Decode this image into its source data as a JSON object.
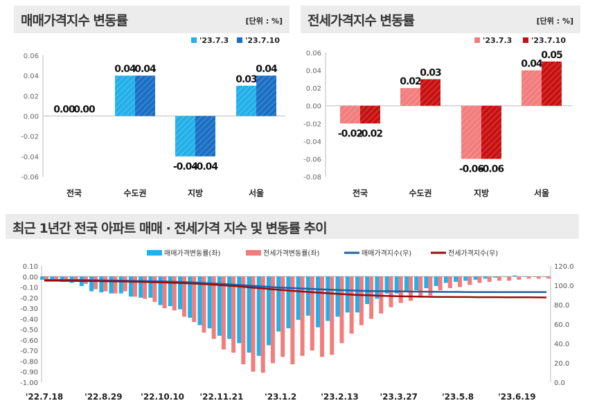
{
  "colors": {
    "sale_light": "#22b0e8",
    "sale_dark": "#1a6fc4",
    "jeonse_light": "#f27d7d",
    "jeonse_dark": "#c81010",
    "sale_line": "#1f5fa8",
    "jeonse_line": "#9b0a0a"
  },
  "chart_data": [
    {
      "type": "bar",
      "title": "매매가격지수 변동률",
      "unit": "[단위 : %]",
      "categories": [
        "전국",
        "수도권",
        "지방",
        "서울"
      ],
      "series": [
        {
          "name": "'23.7.3",
          "values": [
            0.0,
            0.04,
            -0.04,
            0.03
          ]
        },
        {
          "name": "'23.7.10",
          "values": [
            0.0,
            0.04,
            -0.04,
            0.04
          ]
        }
      ],
      "ylim": [
        -0.06,
        0.06
      ],
      "yticks": [
        "0.06",
        "0.04",
        "0.02",
        "0.00",
        "-0.02",
        "-0.04",
        "-0.06"
      ],
      "data_labels": [
        [
          "0.00",
          "0.04",
          "-0.04",
          "0.03"
        ],
        [
          "0.00",
          "0.04",
          "-0.04",
          "0.04"
        ]
      ],
      "legend": "top-right"
    },
    {
      "type": "bar",
      "title": "전세가격지수 변동률",
      "unit": "[단위 : %]",
      "categories": [
        "전국",
        "수도권",
        "지방",
        "서울"
      ],
      "series": [
        {
          "name": "'23.7.3",
          "values": [
            -0.02,
            0.02,
            -0.06,
            0.04
          ]
        },
        {
          "name": "'23.7.10",
          "values": [
            -0.02,
            0.03,
            -0.06,
            0.05
          ]
        }
      ],
      "ylim": [
        -0.08,
        0.06
      ],
      "yticks": [
        "0.06",
        "0.04",
        "0.02",
        "0.00",
        "-0.02",
        "-0.04",
        "-0.06",
        "-0.08"
      ],
      "data_labels": [
        [
          "-0.02",
          "0.02",
          "-0.06",
          "0.04"
        ],
        [
          "-0.02",
          "0.03",
          "-0.06",
          "0.05"
        ]
      ],
      "legend": "top-right"
    },
    {
      "type": "bar+line",
      "title": "최근 1년간 전국 아파트 매매 · 전세가격 지수 및 변동률 추이",
      "xticks": [
        "'22.7.18",
        "'22.8.29",
        "'22.10.10",
        "'22.11.21",
        "'23.1.2",
        "'23.2.13",
        "'23.3.27",
        "'23.5.8",
        "'23.6.19"
      ],
      "ylim_left": [
        -1.0,
        0.1
      ],
      "yticks_left": [
        "0.10",
        "0.00",
        "-0.10",
        "-0.20",
        "-0.30",
        "-0.40",
        "-0.50",
        "-0.60",
        "-0.70",
        "-0.80",
        "-0.90",
        "-1.00"
      ],
      "ylim_right": [
        0,
        120
      ],
      "yticks_right": [
        "120.0",
        "100.0",
        "80.0",
        "60.0",
        "40.0",
        "20.0",
        "0.0"
      ],
      "legend": "top",
      "series": [
        {
          "name": "매매가격변동률(좌)",
          "type": "bar",
          "axis": "left",
          "values": [
            -0.03,
            -0.04,
            -0.05,
            -0.06,
            -0.09,
            -0.14,
            -0.15,
            -0.16,
            -0.16,
            -0.19,
            -0.2,
            -0.2,
            -0.27,
            -0.28,
            -0.31,
            -0.39,
            -0.46,
            -0.49,
            -0.56,
            -0.59,
            -0.63,
            -0.72,
            -0.75,
            -0.65,
            -0.52,
            -0.49,
            -0.41,
            -0.37,
            -0.48,
            -0.42,
            -0.38,
            -0.34,
            -0.34,
            -0.26,
            -0.21,
            -0.16,
            -0.16,
            -0.14,
            -0.13,
            -0.11,
            -0.09,
            -0.06,
            -0.05,
            -0.04,
            -0.03,
            -0.02,
            -0.01,
            0.0,
            0.01,
            0.0,
            0.0,
            0.0
          ]
        },
        {
          "name": "전세가격변동률(좌)",
          "type": "bar",
          "axis": "left",
          "values": [
            -0.03,
            -0.04,
            -0.05,
            -0.05,
            -0.07,
            -0.12,
            -0.14,
            -0.16,
            -0.14,
            -0.19,
            -0.21,
            -0.24,
            -0.3,
            -0.32,
            -0.38,
            -0.43,
            -0.53,
            -0.59,
            -0.69,
            -0.72,
            -0.83,
            -0.9,
            -0.91,
            -0.82,
            -0.76,
            -0.83,
            -0.75,
            -0.7,
            -0.76,
            -0.74,
            -0.63,
            -0.54,
            -0.46,
            -0.4,
            -0.35,
            -0.29,
            -0.25,
            -0.23,
            -0.2,
            -0.18,
            -0.13,
            -0.11,
            -0.1,
            -0.08,
            -0.06,
            -0.05,
            -0.04,
            -0.04,
            -0.03,
            -0.02,
            -0.02,
            -0.02
          ]
        },
        {
          "name": "매매가격지수(우)",
          "type": "line",
          "axis": "right",
          "values": [
            105.6,
            105.6,
            105.5,
            105.5,
            105.4,
            105.3,
            105.1,
            105.0,
            104.8,
            104.6,
            104.4,
            104.2,
            104.0,
            103.7,
            103.4,
            103.0,
            102.5,
            102.0,
            101.5,
            100.9,
            100.3,
            99.6,
            98.9,
            98.2,
            97.7,
            97.2,
            96.8,
            96.4,
            95.9,
            95.5,
            95.1,
            94.8,
            94.5,
            94.2,
            94.0,
            93.9,
            93.7,
            93.6,
            93.5,
            93.4,
            93.3,
            93.2,
            93.2,
            93.1,
            93.1,
            93.1,
            93.1,
            93.1,
            93.1,
            93.1,
            93.1,
            93.1
          ]
        },
        {
          "name": "전세가격지수(우)",
          "type": "line",
          "axis": "right",
          "values": [
            104.8,
            104.8,
            104.7,
            104.6,
            104.5,
            104.4,
            104.3,
            104.1,
            104.0,
            103.8,
            103.6,
            103.3,
            103.0,
            102.7,
            102.3,
            101.9,
            101.4,
            100.8,
            100.2,
            99.5,
            98.7,
            97.8,
            96.9,
            96.1,
            95.3,
            94.5,
            93.8,
            93.1,
            92.4,
            91.7,
            91.1,
            90.5,
            90.0,
            89.7,
            89.3,
            89.0,
            88.8,
            88.6,
            88.4,
            88.2,
            88.1,
            88.0,
            87.9,
            87.9,
            87.8,
            87.8,
            87.8,
            87.7,
            87.7,
            87.7,
            87.6,
            87.5
          ]
        }
      ]
    }
  ]
}
